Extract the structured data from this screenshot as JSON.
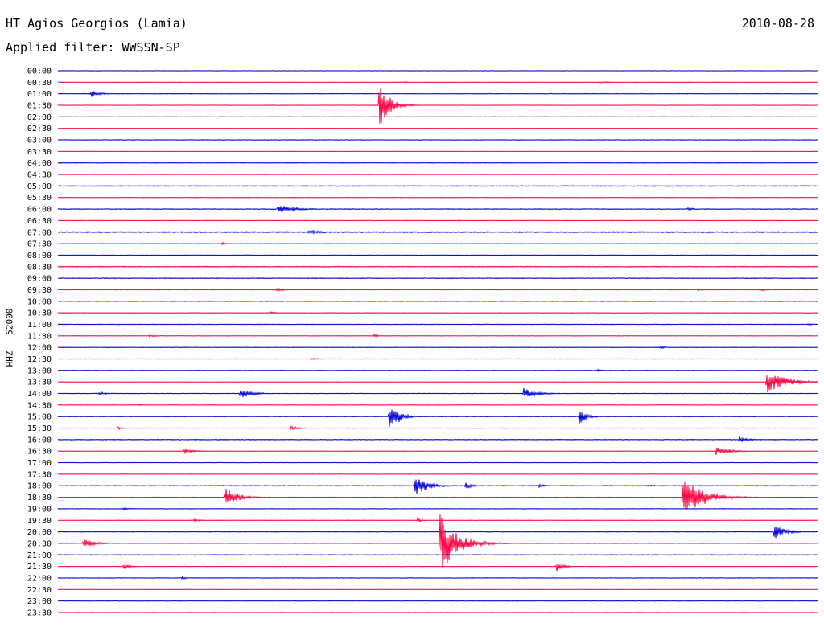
{
  "header": {
    "station": "HT Agios Georgios (Lamia)",
    "filter_label": "Applied filter: WWSSN-SP",
    "date": "2010-08-28"
  },
  "axis": {
    "channel_label": "HHZ - 52000"
  },
  "colors": {
    "trace_a": "#0000d8",
    "trace_b": "#ff0040",
    "text": "#000000",
    "background": "#ffffff"
  },
  "chart_data": {
    "type": "line",
    "title": "HT Agios Georgios (Lamia)",
    "subtitle": "Applied filter: WWSSN-SP",
    "ylabel": "HHZ - 52000",
    "row_labels": [
      "00:00",
      "00:30",
      "01:00",
      "01:30",
      "02:00",
      "02:30",
      "03:00",
      "03:30",
      "04:00",
      "04:30",
      "05:00",
      "05:30",
      "06:00",
      "06:30",
      "07:00",
      "07:30",
      "08:00",
      "08:30",
      "09:00",
      "09:30",
      "10:00",
      "10:30",
      "11:00",
      "11:30",
      "12:00",
      "12:30",
      "13:00",
      "13:30",
      "14:00",
      "14:30",
      "15:00",
      "15:30",
      "16:00",
      "16:30",
      "17:00",
      "17:30",
      "18:00",
      "18:30",
      "19:00",
      "19:30",
      "20:00",
      "20:30",
      "21:00",
      "21:30",
      "22:00",
      "22:30",
      "23:00",
      "23:30"
    ],
    "x_range_minutes": [
      0,
      30
    ],
    "row_noise": [
      0.6,
      0.6,
      0.8,
      0.5,
      0.5,
      0.5,
      0.8,
      0.5,
      0.9,
      0.5,
      1.2,
      0.8,
      1.0,
      0.7,
      1.6,
      0.6,
      0.8,
      1.2,
      1.0,
      0.8,
      1.0,
      0.8,
      0.8,
      0.6,
      0.8,
      0.6,
      0.8,
      0.6,
      0.8,
      0.8,
      0.9,
      0.6,
      1.0,
      0.6,
      0.6,
      0.6,
      1.1,
      0.6,
      0.8,
      0.6,
      1.0,
      0.6,
      1.2,
      0.6,
      0.8,
      0.5,
      0.8,
      0.6
    ],
    "events": [
      {
        "row": 1,
        "t": 13.7,
        "amp": 2,
        "dur": 0.4
      },
      {
        "row": 1,
        "t": 21.4,
        "amp": 2,
        "dur": 1.4
      },
      {
        "row": 2,
        "t": 1.3,
        "amp": 9,
        "dur": 0.8
      },
      {
        "row": 3,
        "t": 12.7,
        "amp": 66,
        "dur": 0.9
      },
      {
        "row": 3,
        "t": 13.3,
        "amp": 6,
        "dur": 0.6
      },
      {
        "row": 10,
        "t": 14.0,
        "amp": 2,
        "dur": 0.5
      },
      {
        "row": 12,
        "t": 8.7,
        "amp": 12,
        "dur": 1.6
      },
      {
        "row": 12,
        "t": 24.9,
        "amp": 5,
        "dur": 0.6
      },
      {
        "row": 13,
        "t": 15.8,
        "amp": 2,
        "dur": 0.6
      },
      {
        "row": 14,
        "t": 8.4,
        "amp": 3,
        "dur": 0.4
      },
      {
        "row": 14,
        "t": 9.9,
        "amp": 6,
        "dur": 1.4
      },
      {
        "row": 15,
        "t": 6.5,
        "amp": 4,
        "dur": 0.3
      },
      {
        "row": 17,
        "t": 2.2,
        "amp": 1.5,
        "dur": 2.5
      },
      {
        "row": 19,
        "t": 8.6,
        "amp": 6,
        "dur": 0.8
      },
      {
        "row": 19,
        "t": 25.3,
        "amp": 3,
        "dur": 0.8
      },
      {
        "row": 19,
        "t": 27.7,
        "amp": 4,
        "dur": 0.7
      },
      {
        "row": 21,
        "t": 8.4,
        "amp": 3,
        "dur": 0.5
      },
      {
        "row": 22,
        "t": 29.6,
        "amp": 3,
        "dur": 0.5
      },
      {
        "row": 23,
        "t": 3.6,
        "amp": 3,
        "dur": 0.8
      },
      {
        "row": 23,
        "t": 12.5,
        "amp": 6,
        "dur": 0.3
      },
      {
        "row": 24,
        "t": 23.8,
        "amp": 4,
        "dur": 0.5
      },
      {
        "row": 25,
        "t": 10.0,
        "amp": 2,
        "dur": 1.2
      },
      {
        "row": 26,
        "t": 21.3,
        "amp": 4,
        "dur": 0.5
      },
      {
        "row": 27,
        "t": 28.0,
        "amp": 30,
        "dur": 1.8
      },
      {
        "row": 28,
        "t": 1.6,
        "amp": 4,
        "dur": 1.2
      },
      {
        "row": 28,
        "t": 7.2,
        "amp": 16,
        "dur": 1.0
      },
      {
        "row": 28,
        "t": 18.4,
        "amp": 14,
        "dur": 1.3
      },
      {
        "row": 29,
        "t": 3.2,
        "amp": 2,
        "dur": 0.6
      },
      {
        "row": 30,
        "t": 13.1,
        "amp": 46,
        "dur": 0.8
      },
      {
        "row": 30,
        "t": 20.6,
        "amp": 22,
        "dur": 0.7
      },
      {
        "row": 31,
        "t": 2.4,
        "amp": 4,
        "dur": 0.4
      },
      {
        "row": 31,
        "t": 9.2,
        "amp": 6,
        "dur": 0.8
      },
      {
        "row": 32,
        "t": 26.9,
        "amp": 8,
        "dur": 1.0
      },
      {
        "row": 33,
        "t": 5.0,
        "amp": 6,
        "dur": 1.0
      },
      {
        "row": 33,
        "t": 26.0,
        "amp": 12,
        "dur": 1.2
      },
      {
        "row": 36,
        "t": 14.1,
        "amp": 28,
        "dur": 1.2
      },
      {
        "row": 36,
        "t": 16.1,
        "amp": 8,
        "dur": 0.7
      },
      {
        "row": 36,
        "t": 19.0,
        "amp": 4,
        "dur": 0.8
      },
      {
        "row": 36,
        "t": 23.3,
        "amp": 3,
        "dur": 0.8
      },
      {
        "row": 37,
        "t": 6.6,
        "amp": 30,
        "dur": 1.1
      },
      {
        "row": 37,
        "t": 24.7,
        "amp": 56,
        "dur": 1.8
      },
      {
        "row": 38,
        "t": 2.6,
        "amp": 3,
        "dur": 0.8
      },
      {
        "row": 39,
        "t": 5.4,
        "amp": 5,
        "dur": 0.6
      },
      {
        "row": 39,
        "t": 14.2,
        "amp": 6,
        "dur": 0.5
      },
      {
        "row": 40,
        "t": 28.3,
        "amp": 20,
        "dur": 1.0
      },
      {
        "row": 41,
        "t": 1.0,
        "amp": 14,
        "dur": 1.0
      },
      {
        "row": 41,
        "t": 15.1,
        "amp": 80,
        "dur": 1.6
      },
      {
        "row": 43,
        "t": 2.6,
        "amp": 8,
        "dur": 0.7
      },
      {
        "row": 43,
        "t": 19.7,
        "amp": 12,
        "dur": 0.7
      },
      {
        "row": 44,
        "t": 4.9,
        "amp": 7,
        "dur": 0.2
      },
      {
        "row": 47,
        "t": 5.8,
        "amp": 3,
        "dur": 0.4
      }
    ]
  }
}
